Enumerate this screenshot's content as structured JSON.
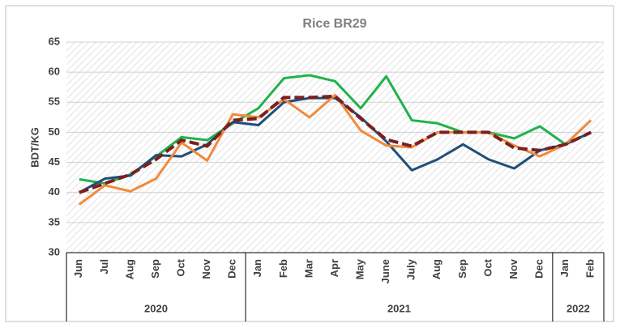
{
  "chart_data": {
    "type": "line",
    "title": "Rice BR29",
    "y_label": "BDT/KG",
    "categories": [
      "Jun",
      "Jul",
      "Aug",
      "Sep",
      "Oct",
      "Nov",
      "Dec",
      "Jan",
      "Feb",
      "Mar",
      "Apr",
      "May",
      "June",
      "July",
      "Aug",
      "Sep",
      "Oct",
      "Nov",
      "Dec",
      "Jan",
      "Feb"
    ],
    "x_groups": [
      {
        "label": "2020",
        "count": 7
      },
      {
        "label": "2021",
        "count": 12
      },
      {
        "label": "2022",
        "count": 2
      }
    ],
    "series": [
      {
        "color": "#21b24b",
        "dash": false,
        "values": [
          42.2,
          41.5,
          43,
          46,
          49.2,
          48.7,
          51.5,
          54,
          59,
          59.5,
          58.5,
          54,
          59.3,
          52,
          51.5,
          50,
          50,
          49,
          51,
          48,
          50
        ]
      },
      {
        "color": "#1f4e79",
        "dash": false,
        "values": [
          40,
          42.3,
          42.8,
          46.2,
          46,
          48,
          51.7,
          51.2,
          55,
          55.7,
          55.7,
          52.5,
          48.5,
          43.7,
          45.5,
          48,
          45.5,
          44,
          47,
          48,
          50
        ]
      },
      {
        "color": "#f08a3c",
        "dash": false,
        "values": [
          38,
          41.2,
          40.2,
          42.3,
          48.3,
          45.3,
          53,
          52.5,
          55.5,
          52.5,
          56.2,
          50.3,
          47.8,
          47.5,
          50,
          50,
          50,
          47.8,
          46,
          48,
          52
        ]
      },
      {
        "color": "#7b1f1f",
        "dash": true,
        "values": [
          40,
          41.5,
          43,
          45.5,
          48.7,
          47.7,
          52,
          52.3,
          55.8,
          55.8,
          56,
          52.3,
          48.8,
          47.7,
          50,
          50,
          50,
          47.4,
          47,
          48,
          50
        ]
      }
    ],
    "ylim": [
      30,
      65
    ],
    "yticks": [
      30,
      35,
      40,
      45,
      50,
      55,
      60,
      65
    ],
    "grid": true
  }
}
